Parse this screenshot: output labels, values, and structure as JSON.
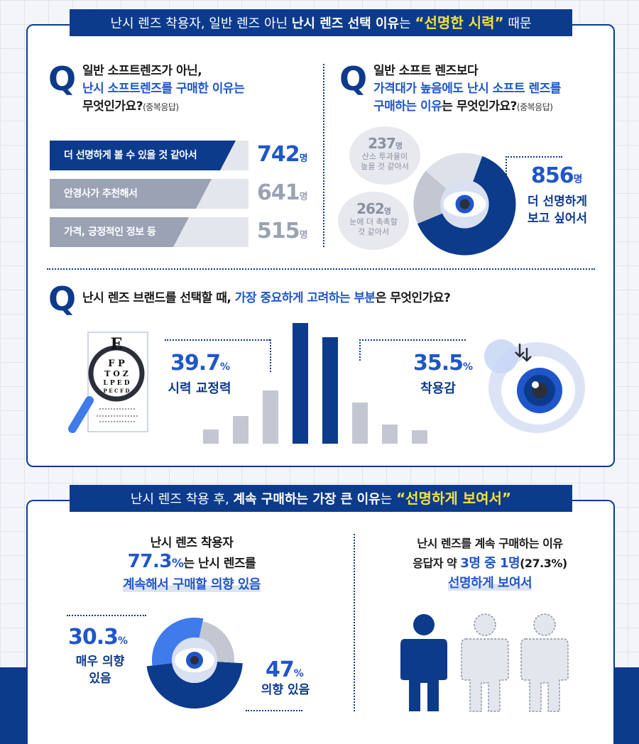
{
  "colors": {
    "navy": "#0d3b8c",
    "blue": "#1f56c9",
    "grey": "#c3c7d2",
    "yellow": "#f4e23b"
  },
  "banner1": {
    "prefix": "난시 렌즈 착용자, 일반 렌즈 아닌",
    "bold": "난시 렌즈 선택 이유",
    "mid": "는",
    "highlight": "“선명한 시력”",
    "suffix": "때문"
  },
  "q1": {
    "mark": "Q",
    "line1": "일반 소프트렌즈가 아닌,",
    "line2": "난시 소프트렌즈를 구매한 이유는",
    "line3": "무엇인가요?",
    "note": "(중복응답)"
  },
  "q2": {
    "mark": "Q",
    "line1": "일반 소프트 렌즈보다",
    "line2": "가격대가 높음에도 난시 소프트 렌즈를",
    "line3a": "구매하는 이유",
    "line3b": "는 무엇인가요?",
    "note": "(중복응답)"
  },
  "q3": {
    "mark": "Q",
    "text_a": "난시 렌즈 브랜드를",
    "text_b": "선택할 때,",
    "text_c": "가장 중요하게 고려하는 부분",
    "text_d": "은 무엇인가요?"
  },
  "banner2": {
    "prefix": "난시 렌즈 착용 후,",
    "bold": "계속 구매하는 가장 큰 이유",
    "mid": "는",
    "highlight": "“선명하게 보여서”"
  },
  "chart_data": [
    {
      "type": "bar",
      "categories": [
        "더 선명하게 볼 수 있을 것 같아서",
        "안경사가 추천해서",
        "가격, 긍정적인 정보 등"
      ],
      "values": [
        742,
        641,
        515
      ],
      "unit": "명"
    },
    {
      "type": "pie",
      "categories": [
        "더 선명하게 보고 싶어서",
        "산소 투과율이 높을 것 같아서",
        "눈에 더 촉촉할 것 같아서"
      ],
      "values": [
        856,
        237,
        262
      ],
      "unit": "명"
    },
    {
      "type": "bar",
      "categories": [
        "시력 교정력",
        "착용감"
      ],
      "values": [
        39.7,
        35.5
      ],
      "unit": "%",
      "decorative_bar_levels": [
        0.12,
        0.23,
        0.44,
        1.0,
        0.88,
        0.34,
        0.16,
        0.11
      ]
    },
    {
      "type": "pie",
      "categories": [
        "매우 의향 있음",
        "의향 있음"
      ],
      "values": [
        30.3,
        47
      ],
      "total_intent_percent": 77.3,
      "unit": "%"
    }
  ],
  "labels": {
    "q1_values": [
      "742",
      "641",
      "515"
    ],
    "unit_people": "명",
    "pie2_main_value": "856",
    "pie2_main_caption_1": "더 선명하게",
    "pie2_main_caption_2": "보고 싶어서",
    "bubble_top_value": "237",
    "bubble_top_desc_1": "산소 투과율이",
    "bubble_top_desc_2": "높을 것 같아서",
    "bubble_bottom_value": "262",
    "bubble_bottom_desc_1": "눈에 더 촉촉할",
    "bubble_bottom_desc_2": "것 같아서",
    "q3_left_value": "39.7",
    "q3_left_caption": "시력 교정력",
    "q3_right_value": "35.5",
    "q3_right_caption": "착용감",
    "pct": "%"
  },
  "section2": {
    "left_line1": "난시 렌즈 착용자",
    "left_value": "77.3",
    "left_line2_suffix": "는 난시 렌즈를",
    "left_line3": "계속해서 구매할 의향 있음",
    "pie_left_value": "30.3",
    "pie_left_caption_1": "매우 의향",
    "pie_left_caption_2": "있음",
    "pie_right_value": "47",
    "pie_right_caption": "의향 있음",
    "right_line1": "난시 렌즈를 계속 구매하는 이유",
    "right_line2_prefix": "응답자 약",
    "right_line2_highlight": "3명 중 1명",
    "right_line2_suffix": "(27.3%)",
    "right_line3": "선명하게 보여서"
  },
  "eye_chart": {
    "row1": "E",
    "row2": "F P",
    "row3": "T O Z",
    "row4": "L P E D",
    "row5": "P E C F D"
  }
}
